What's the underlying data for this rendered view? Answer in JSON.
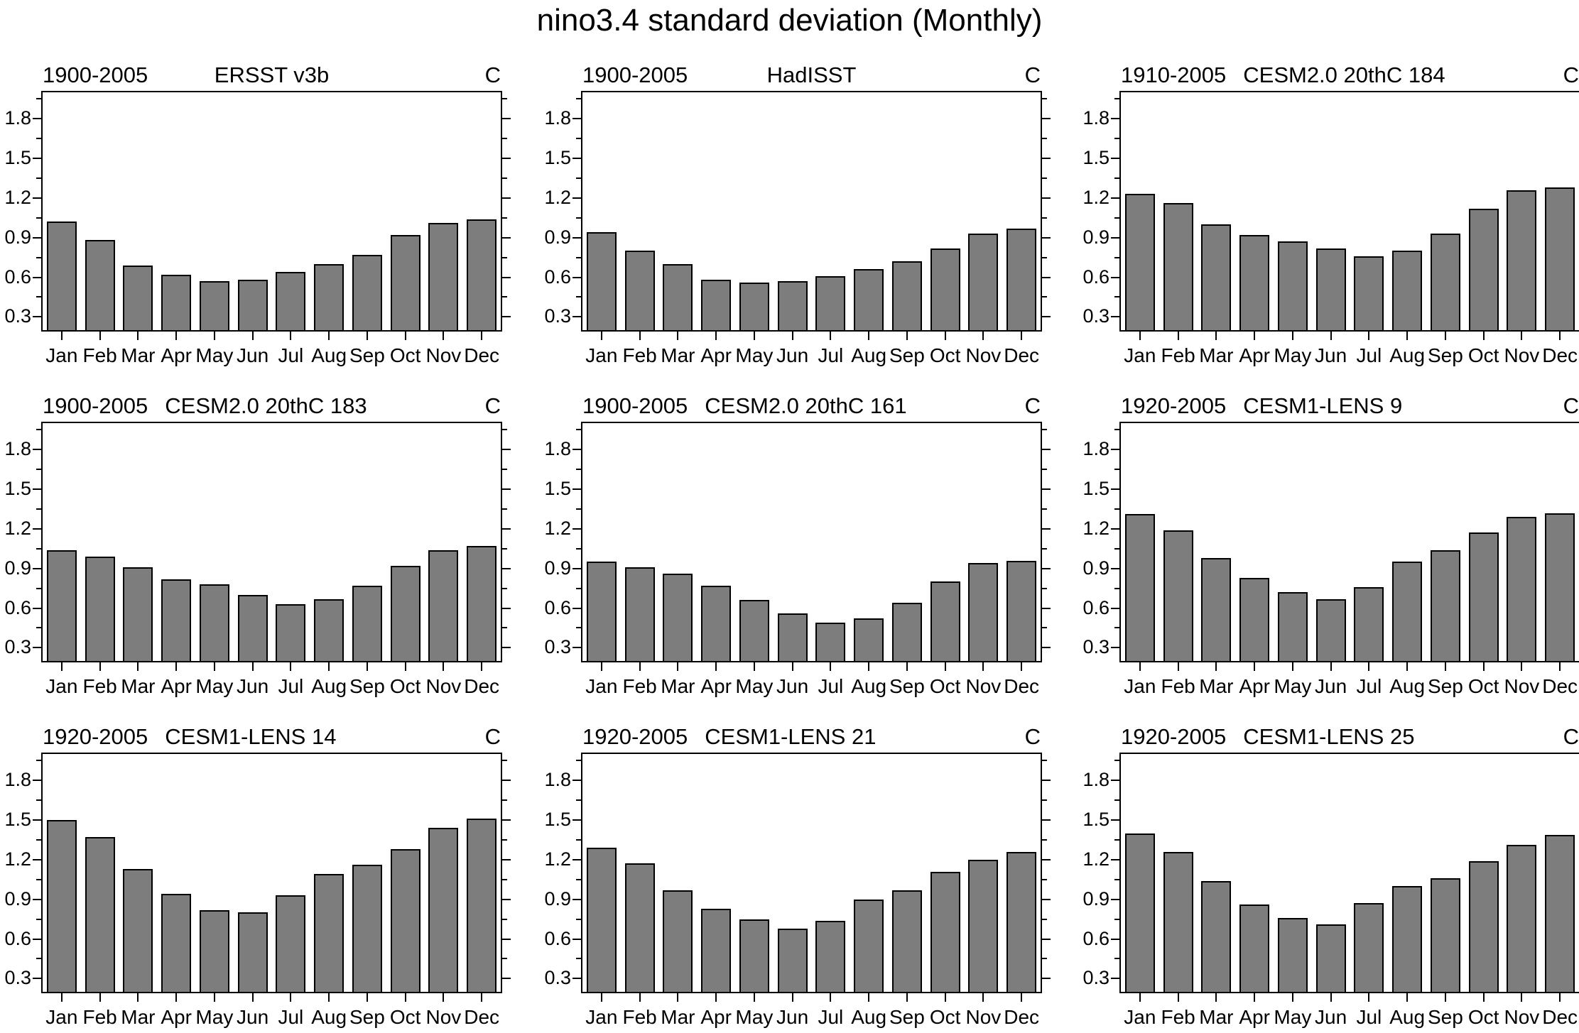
{
  "main_title": "nino3.4 standard deviation (Monthly)",
  "months": [
    "Jan",
    "Feb",
    "Mar",
    "Apr",
    "May",
    "Jun",
    "Jul",
    "Aug",
    "Sep",
    "Oct",
    "Nov",
    "Dec"
  ],
  "y_axis": {
    "tick_labels": [
      "0.3",
      "0.6",
      "0.9",
      "1.2",
      "1.5",
      "1.8"
    ],
    "major_ticks": [
      0.3,
      0.6,
      0.9,
      1.2,
      1.5,
      1.8
    ],
    "minor_ticks": [
      0.45,
      0.75,
      1.05,
      1.35,
      1.65,
      1.95
    ],
    "ymin": 0.2,
    "ymax": 2.0
  },
  "bar_color": "#7d7d7d",
  "chart_data": [
    {
      "type": "bar",
      "period": "1900-2005",
      "name": "ERSST v3b",
      "corner_label": "C",
      "title_name_align": "center",
      "values": [
        1.02,
        0.88,
        0.69,
        0.62,
        0.57,
        0.58,
        0.64,
        0.7,
        0.77,
        0.92,
        1.01,
        1.04
      ]
    },
    {
      "type": "bar",
      "period": "1900-2005",
      "name": "HadISST",
      "corner_label": "C",
      "title_name_align": "center",
      "values": [
        0.94,
        0.8,
        0.7,
        0.58,
        0.56,
        0.57,
        0.61,
        0.66,
        0.72,
        0.82,
        0.93,
        0.97
      ]
    },
    {
      "type": "bar",
      "period": "1910-2005",
      "name": "CESM2.0 20thC 184",
      "corner_label": "C",
      "title_name_align": "left",
      "values": [
        1.23,
        1.16,
        1.0,
        0.92,
        0.87,
        0.82,
        0.76,
        0.8,
        0.93,
        1.12,
        1.26,
        1.28
      ]
    },
    {
      "type": "bar",
      "period": "1900-2005",
      "name": "CESM2.0 20thC 183",
      "corner_label": "C",
      "title_name_align": "left",
      "values": [
        1.04,
        0.99,
        0.91,
        0.82,
        0.78,
        0.7,
        0.63,
        0.67,
        0.77,
        0.92,
        1.04,
        1.07
      ]
    },
    {
      "type": "bar",
      "period": "1900-2005",
      "name": "CESM2.0 20thC 161",
      "corner_label": "C",
      "title_name_align": "left",
      "values": [
        0.95,
        0.91,
        0.86,
        0.77,
        0.66,
        0.56,
        0.49,
        0.52,
        0.64,
        0.8,
        0.94,
        0.96
      ]
    },
    {
      "type": "bar",
      "period": "1920-2005",
      "name": "CESM1-LENS 9",
      "corner_label": "C",
      "title_name_align": "left",
      "values": [
        1.31,
        1.19,
        0.98,
        0.83,
        0.72,
        0.67,
        0.76,
        0.95,
        1.04,
        1.17,
        1.29,
        1.32
      ]
    },
    {
      "type": "bar",
      "period": "1920-2005",
      "name": "CESM1-LENS 14",
      "corner_label": "C",
      "title_name_align": "left",
      "values": [
        1.5,
        1.37,
        1.13,
        0.94,
        0.82,
        0.8,
        0.93,
        1.09,
        1.16,
        1.28,
        1.44,
        1.51
      ]
    },
    {
      "type": "bar",
      "period": "1920-2005",
      "name": "CESM1-LENS 21",
      "corner_label": "C",
      "title_name_align": "left",
      "values": [
        1.29,
        1.17,
        0.97,
        0.83,
        0.75,
        0.68,
        0.74,
        0.9,
        0.97,
        1.11,
        1.2,
        1.26
      ]
    },
    {
      "type": "bar",
      "period": "1920-2005",
      "name": "CESM1-LENS 25",
      "corner_label": "C",
      "title_name_align": "left",
      "values": [
        1.4,
        1.26,
        1.04,
        0.86,
        0.76,
        0.71,
        0.87,
        1.0,
        1.06,
        1.19,
        1.31,
        1.39
      ]
    }
  ]
}
